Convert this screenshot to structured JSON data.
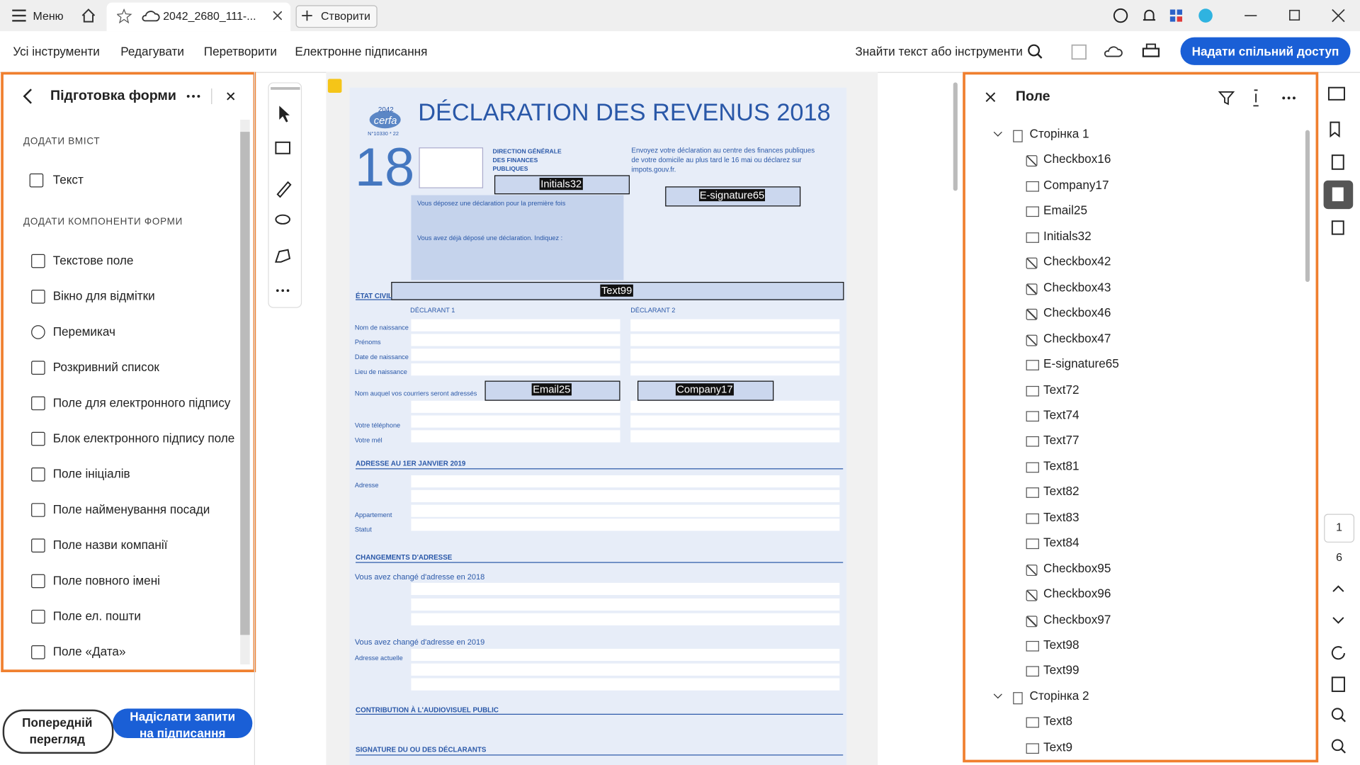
{
  "titlebar": {
    "menu": "Меню",
    "tab": "2042_2680_111-...",
    "new_tab": "Створити"
  },
  "menubar": {
    "items": [
      "Усі інструменти",
      "Редагувати",
      "Перетворити",
      "Електронне підписання"
    ],
    "search": "Знайти текст або інструменти",
    "share": "Надати спільний доступ"
  },
  "left_panel": {
    "title": "Підготовка форми",
    "sections": [
      {
        "heading": "ДОДАТИ ВМІСТ",
        "items": [
          "Текст"
        ]
      },
      {
        "heading": "ДОДАТИ КОМПОНЕНТИ ФОРМИ",
        "items": [
          "Текстове поле",
          "Вікно для відмітки",
          "Перемикач",
          "Розкривний список",
          "Поле для електронного підпису",
          "Блок електронного підпису поле",
          "Поле ініціалів",
          "Поле найменування посади",
          "Поле назви компанії",
          "Поле повного імені",
          "Поле ел. пошти",
          "Поле «Дата»"
        ]
      }
    ]
  },
  "buttons": {
    "preview": "Попередній перегляд",
    "send": "Надіслати запити на підписання"
  },
  "right_panel": {
    "title": "Поле",
    "groups": [
      {
        "name": "Сторінка 1",
        "fields": [
          {
            "name": "Checkbox16",
            "kind": "checkbox"
          },
          {
            "name": "Company17",
            "kind": "text"
          },
          {
            "name": "Email25",
            "kind": "text"
          },
          {
            "name": "Initials32",
            "kind": "text"
          },
          {
            "name": "Checkbox42",
            "kind": "checkbox"
          },
          {
            "name": "Checkbox43",
            "kind": "checkbox"
          },
          {
            "name": "Checkbox46",
            "kind": "checkbox"
          },
          {
            "name": "Checkbox47",
            "kind": "checkbox"
          },
          {
            "name": "E-signature65",
            "kind": "text"
          },
          {
            "name": "Text72",
            "kind": "text"
          },
          {
            "name": "Text74",
            "kind": "text"
          },
          {
            "name": "Text77",
            "kind": "text"
          },
          {
            "name": "Text81",
            "kind": "text"
          },
          {
            "name": "Text82",
            "kind": "text"
          },
          {
            "name": "Text83",
            "kind": "text"
          },
          {
            "name": "Text84",
            "kind": "text"
          },
          {
            "name": "Checkbox95",
            "kind": "checkbox"
          },
          {
            "name": "Checkbox96",
            "kind": "checkbox"
          },
          {
            "name": "Checkbox97",
            "kind": "checkbox"
          },
          {
            "name": "Text98",
            "kind": "text"
          },
          {
            "name": "Text99",
            "kind": "text"
          }
        ]
      },
      {
        "name": "Сторінка 2",
        "fields": [
          {
            "name": "Text8",
            "kind": "text"
          },
          {
            "name": "Text9",
            "kind": "text"
          }
        ]
      }
    ]
  },
  "page_nav": {
    "current": "1",
    "total": "6"
  },
  "document": {
    "title": "DÉCLARATION DES REVENUS 2018",
    "form_no": "2042",
    "cerfa": "cerfa",
    "cerfa_no": "N°10330 * 22",
    "year": "18",
    "dgfip": "DIRECTION GÉNÉRALE DES FINANCES PUBLIQUES",
    "notice": "Envoyez votre déclaration au centre des finances publiques de votre domicile au plus tard le 16 mai ou déclarez sur impots.gouv.fr.",
    "first_time": "Vous déposez une déclaration pour la première fois",
    "already": "Vous avez déjà déposé une déclaration. Indiquez :",
    "fields": [
      "Initials32",
      "E-signature65",
      "Text99",
      "Email25",
      "Company17"
    ],
    "sections": [
      "ÉTAT CIVIL",
      "ADRESSE AU 1ER JANVIER 2019",
      "CHANGEMENTS D'ADRESSE",
      "CONTRIBUTION À L'AUDIOVISUEL PUBLIC",
      "SIGNATURE DU OU DES DÉCLARANTS"
    ],
    "labels": [
      "DÉCLARANT 1",
      "DÉCLARANT 2",
      "Nom de naissance",
      "Prénoms",
      "Date de naissance",
      "Lieu de naissance",
      "Nom auquel vos courriers seront adressés",
      "Votre téléphone",
      "Votre mél",
      "Adresse",
      "Appartement",
      "Statut",
      "Vous avez changé d'adresse en 2018",
      "Vous avez changé d'adresse en 2019",
      "Adresse actuelle"
    ]
  }
}
